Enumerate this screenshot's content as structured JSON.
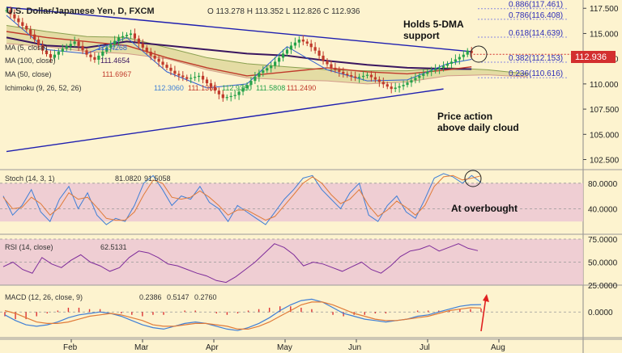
{
  "colors": {
    "background": "#fdf3cf",
    "panel_fill": "#ecc7d4",
    "candle_up": "#26a24a",
    "candle_down": "#c0392b",
    "trendline": "#1f1fb0",
    "ma100": "#3a1660",
    "ma50": "#c0392b",
    "ma5": "#2f5fd0",
    "cloud": "#d9d292",
    "cloud_dark": "#e0b8a0",
    "stoch_k": "#3f7fd6",
    "stoch_d": "#e07b39",
    "rsi": "#7e2c9a",
    "macd_line": "#3f7fd6",
    "macd_signal": "#e07b39",
    "hist": "#d33",
    "price_tag": "#d32f2f"
  },
  "header": {
    "symbol_title": "U.S. Dollar/Japanese Yen, D, FXCM",
    "ohlc": "O 113.278  H 113.352  L 112.826  C 112.936",
    "ma5_label": "MA (5, close)",
    "ma5_value": "112.4268",
    "ma100_label": "MA (100, close)",
    "ma100_value": "111.4654",
    "ma50_label": "MA (50, close)",
    "ma50_value": "111.6967",
    "ichimoku_label": "Ichimoku (9, 26, 52, 26)",
    "ichimoku_values": [
      "112.3060",
      "111.1365",
      "112.9360",
      "111.5808",
      "111.2490"
    ]
  },
  "annotations": {
    "holds_line1": "Holds 5-DMA",
    "holds_line2": "support",
    "price_action_line1": "Price action",
    "price_action_line2": "above daily cloud",
    "overbought": "At overbought"
  },
  "price_tag": "112.936",
  "chart_data": [
    {
      "type": "candlestick",
      "title": "U.S. Dollar/Japanese Yen, D, FXCM",
      "categories": [
        "Feb",
        "Mar",
        "Apr",
        "May",
        "Jun",
        "Jul",
        "Aug"
      ],
      "ylim": [
        101.5,
        118.0
      ],
      "yticks": [
        "117.500",
        "115.000",
        "112.500",
        "110.000",
        "107.500",
        "105.000",
        "102.500"
      ],
      "ytick_values": [
        117.5,
        115.0,
        112.5,
        110.0,
        107.5,
        105.0,
        102.5
      ],
      "close_path": [
        [
          0,
          117.3
        ],
        [
          0.25,
          116.3
        ],
        [
          0.5,
          115.4
        ],
        [
          0.7,
          114.4
        ],
        [
          0.9,
          113.3
        ],
        [
          1.1,
          112.6
        ],
        [
          1.4,
          113.5
        ],
        [
          1.7,
          114.2
        ],
        [
          2.0,
          112.9
        ],
        [
          2.2,
          112.4
        ],
        [
          2.5,
          113.6
        ],
        [
          2.8,
          114.6
        ],
        [
          3.1,
          115.0
        ],
        [
          3.3,
          114.0
        ],
        [
          3.6,
          112.8
        ],
        [
          3.9,
          111.9
        ],
        [
          4.2,
          111.0
        ],
        [
          4.5,
          110.5
        ],
        [
          4.8,
          110.8
        ],
        [
          5.1,
          109.7
        ],
        [
          5.4,
          108.6
        ],
        [
          5.7,
          108.9
        ],
        [
          6.0,
          109.9
        ],
        [
          6.3,
          111.1
        ],
        [
          6.6,
          111.8
        ],
        [
          6.9,
          113.0
        ],
        [
          7.1,
          113.8
        ],
        [
          7.3,
          114.4
        ],
        [
          7.5,
          114.0
        ],
        [
          7.7,
          113.3
        ],
        [
          7.9,
          112.3
        ],
        [
          8.1,
          111.6
        ],
        [
          8.4,
          111.0
        ],
        [
          8.7,
          110.6
        ],
        [
          9.0,
          110.9
        ],
        [
          9.3,
          110.2
        ],
        [
          9.6,
          109.5
        ],
        [
          9.9,
          109.9
        ],
        [
          10.2,
          110.6
        ],
        [
          10.5,
          111.2
        ],
        [
          10.8,
          111.6
        ],
        [
          11.1,
          112.2
        ],
        [
          11.4,
          112.9
        ],
        [
          11.5,
          113.3
        ],
        [
          11.65,
          112.94
        ]
      ],
      "ma5": [
        [
          0,
          116.8
        ],
        [
          1,
          113.4
        ],
        [
          2,
          113.0
        ],
        [
          3,
          114.6
        ],
        [
          4,
          111.2
        ],
        [
          5,
          109.6
        ],
        [
          6,
          110.0
        ],
        [
          7,
          113.7
        ],
        [
          8,
          111.4
        ],
        [
          9,
          110.3
        ],
        [
          10,
          110.4
        ],
        [
          11,
          112.0
        ],
        [
          11.6,
          112.43
        ]
      ],
      "ma50": [
        [
          0,
          115.2
        ],
        [
          1,
          114.6
        ],
        [
          2,
          114.2
        ],
        [
          3,
          113.8
        ],
        [
          4,
          112.6
        ],
        [
          5,
          111.6
        ],
        [
          6,
          110.8
        ],
        [
          7,
          111.2
        ],
        [
          8,
          111.6
        ],
        [
          9,
          111.2
        ],
        [
          10,
          111.0
        ],
        [
          11,
          111.4
        ],
        [
          11.6,
          111.7
        ]
      ],
      "ma100": [
        [
          0,
          114.6
        ],
        [
          1,
          113.8
        ],
        [
          2,
          113.6
        ],
        [
          3,
          114.2
        ],
        [
          4,
          113.8
        ],
        [
          5,
          113.4
        ],
        [
          6,
          113.0
        ],
        [
          7,
          112.8
        ],
        [
          8,
          112.3
        ],
        [
          9,
          111.9
        ],
        [
          10,
          111.6
        ],
        [
          11,
          111.5
        ],
        [
          11.6,
          111.47
        ]
      ],
      "cloud_top": [
        [
          0,
          115.8
        ],
        [
          1,
          115.2
        ],
        [
          2,
          114.7
        ],
        [
          3,
          114.6
        ],
        [
          4,
          113.6
        ],
        [
          5,
          112.6
        ],
        [
          6,
          112.0
        ],
        [
          7,
          111.7
        ],
        [
          8,
          111.4
        ],
        [
          9,
          111.3
        ],
        [
          10,
          111.3
        ],
        [
          11,
          111.6
        ],
        [
          12,
          111.4
        ],
        [
          13,
          111.0
        ]
      ],
      "cloud_bottom": [
        [
          0,
          114.0
        ],
        [
          1,
          113.7
        ],
        [
          2,
          113.2
        ],
        [
          3,
          113.0
        ],
        [
          4,
          112.5
        ],
        [
          5,
          111.4
        ],
        [
          6,
          110.6
        ],
        [
          7,
          110.4
        ],
        [
          8,
          110.3
        ],
        [
          9,
          110.0
        ],
        [
          10,
          110.2
        ],
        [
          11,
          110.8
        ],
        [
          12,
          110.9
        ],
        [
          13,
          110.7
        ]
      ],
      "trend_upper": [
        [
          0,
          117.6
        ],
        [
          11.6,
          113.2
        ]
      ],
      "trend_lower": [
        [
          0,
          103.3
        ],
        [
          10.9,
          109.5
        ]
      ],
      "fibonacci": [
        {
          "label": "0.886(117.461)",
          "value": 117.461
        },
        {
          "label": "0.786(116.408)",
          "value": 116.408
        },
        {
          "label": "0.618(114.639)",
          "value": 114.639
        },
        {
          "label": "0.382(112.153)",
          "value": 112.153
        },
        {
          "label": "0.236(110.616)",
          "value": 110.616
        }
      ]
    },
    {
      "type": "line",
      "title": "Stoch (14, 3, 1)",
      "values_text": [
        "81.0820",
        "91.5058"
      ],
      "ylim": [
        0,
        100
      ],
      "yticks": [
        "80.0000",
        "40.0000"
      ],
      "ytick_values": [
        80,
        40
      ],
      "band": [
        20,
        80
      ],
      "series": [
        {
          "name": "K",
          "values": [
            60,
            30,
            45,
            70,
            35,
            20,
            55,
            75,
            40,
            65,
            30,
            15,
            25,
            20,
            45,
            80,
            92,
            70,
            45,
            60,
            55,
            75,
            50,
            40,
            20,
            45,
            35,
            25,
            15,
            35,
            55,
            70,
            88,
            92,
            70,
            55,
            40,
            65,
            80,
            30,
            20,
            45,
            60,
            35,
            25,
            55,
            88,
            95,
            90,
            80,
            92,
            81
          ]
        },
        {
          "name": "D",
          "values": [
            58,
            40,
            42,
            58,
            48,
            30,
            42,
            65,
            55,
            58,
            42,
            25,
            22,
            22,
            35,
            62,
            85,
            80,
            58,
            55,
            58,
            68,
            58,
            45,
            30,
            38,
            38,
            30,
            22,
            28,
            45,
            62,
            80,
            90,
            80,
            62,
            48,
            55,
            70,
            45,
            28,
            38,
            52,
            42,
            30,
            45,
            75,
            90,
            92,
            85,
            88,
            91.5
          ]
        }
      ]
    },
    {
      "type": "line",
      "title": "RSI (14, close)",
      "value_text": "62.5131",
      "ylim": [
        25,
        75
      ],
      "yticks": [
        "75.0000",
        "50.0000",
        "25.0000"
      ],
      "ytick_values": [
        75,
        50,
        25
      ],
      "series": [
        {
          "name": "RSI",
          "values": [
            45,
            50,
            42,
            38,
            55,
            48,
            44,
            52,
            58,
            50,
            46,
            40,
            44,
            55,
            62,
            60,
            55,
            48,
            46,
            42,
            38,
            35,
            30,
            28,
            34,
            42,
            50,
            60,
            70,
            66,
            58,
            46,
            50,
            48,
            44,
            40,
            45,
            50,
            42,
            38,
            46,
            56,
            62,
            64,
            68,
            62,
            66,
            70,
            65,
            62.5
          ]
        }
      ]
    },
    {
      "type": "bar",
      "title": "MACD (12, 26, close, 9)",
      "values_text": [
        "0.2386",
        "0.5147",
        "0.2760"
      ],
      "ylim": [
        -1.8,
        1.6
      ],
      "yticks": [
        "0.0000"
      ],
      "ytick_values": [
        0
      ],
      "series": [
        {
          "name": "MACD",
          "values": [
            -0.2,
            -0.6,
            -0.9,
            -1.0,
            -0.9,
            -0.7,
            -0.4,
            -0.2,
            -0.1,
            0.0,
            -0.1,
            -0.3,
            -0.6,
            -0.9,
            -1.1,
            -1.2,
            -1.0,
            -0.8,
            -0.7,
            -0.8,
            -1.0,
            -1.2,
            -1.3,
            -1.1,
            -0.8,
            -0.4,
            0.1,
            0.5,
            0.8,
            0.9,
            0.7,
            0.3,
            -0.1,
            -0.3,
            -0.5,
            -0.6,
            -0.7,
            -0.6,
            -0.5,
            -0.3,
            -0.2,
            0.0,
            0.2,
            0.4,
            0.5,
            0.52
          ]
        },
        {
          "name": "Signal",
          "values": [
            0.1,
            -0.1,
            -0.4,
            -0.7,
            -0.8,
            -0.8,
            -0.7,
            -0.5,
            -0.3,
            -0.2,
            -0.1,
            -0.2,
            -0.4,
            -0.6,
            -0.9,
            -1.0,
            -1.0,
            -0.9,
            -0.8,
            -0.8,
            -0.9,
            -1.0,
            -1.2,
            -1.2,
            -1.0,
            -0.7,
            -0.3,
            0.1,
            0.5,
            0.7,
            0.7,
            0.5,
            0.2,
            -0.1,
            -0.3,
            -0.5,
            -0.6,
            -0.6,
            -0.5,
            -0.4,
            -0.3,
            -0.1,
            0.1,
            0.2,
            0.3,
            0.28
          ]
        },
        {
          "name": "Histogram",
          "values": [
            -0.3,
            -0.5,
            -0.5,
            -0.3,
            -0.1,
            0.1,
            0.3,
            0.3,
            0.2,
            0.2,
            0.0,
            -0.1,
            -0.2,
            -0.3,
            -0.2,
            -0.2,
            0.0,
            0.1,
            0.1,
            0.0,
            -0.1,
            -0.2,
            -0.1,
            0.1,
            0.2,
            0.3,
            0.4,
            0.4,
            0.3,
            0.2,
            0.0,
            -0.2,
            -0.3,
            -0.2,
            -0.2,
            -0.1,
            -0.1,
            0.0,
            0.0,
            0.1,
            0.1,
            0.1,
            0.1,
            0.2,
            0.2,
            0.24
          ]
        }
      ]
    }
  ]
}
